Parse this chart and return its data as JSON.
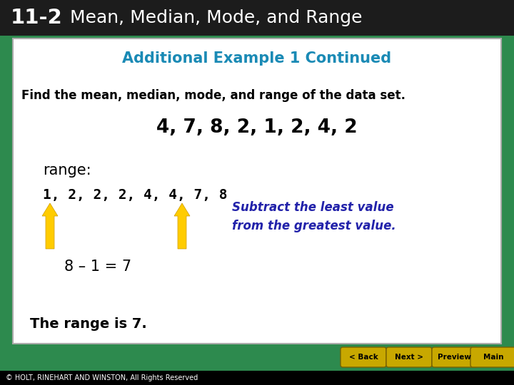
{
  "header_bg": "#1c1c1c",
  "header_num": "11-2",
  "header_title": "  Mean, Median, Mode, and Range",
  "header_num_color": "#ffffff",
  "header_title_color": "#ffffff",
  "content_bg": "#ffffff",
  "content_border": "#aaaaaa",
  "section_title": "Additional Example 1 Continued",
  "section_title_color": "#1a8ab5",
  "find_text": "Find the mean, median, mode, and range of the data set.",
  "find_text_color": "#000000",
  "data_set": "4, 7, 8, 2, 1, 2, 4, 2",
  "data_set_color": "#000000",
  "range_label": "range:",
  "range_label_color": "#000000",
  "sorted_data": "1, 2, 2, 2, 4, 4, 7, 8",
  "sorted_data_color": "#000000",
  "arrow_color": "#ffcc00",
  "note_text": "Subtract the least value\nfrom the greatest value.",
  "note_color": "#2222aa",
  "equation": "8 – 1 = 7",
  "equation_color": "#000000",
  "conclusion": "The range is 7.",
  "conclusion_color": "#000000",
  "footer_green_bg": "#2d8a4e",
  "footer_black_bg": "#000000",
  "footer_text": "© HOLT, RINEHART AND WINSTON, All Rights Reserved",
  "footer_text_color": "#ffffff",
  "outer_bg": "#2d8a4e",
  "btn_labels": [
    "< Back",
    "Next >",
    "Preview",
    "Main"
  ],
  "btn_color": "#c8a800",
  "btn_text_color": "#000000"
}
